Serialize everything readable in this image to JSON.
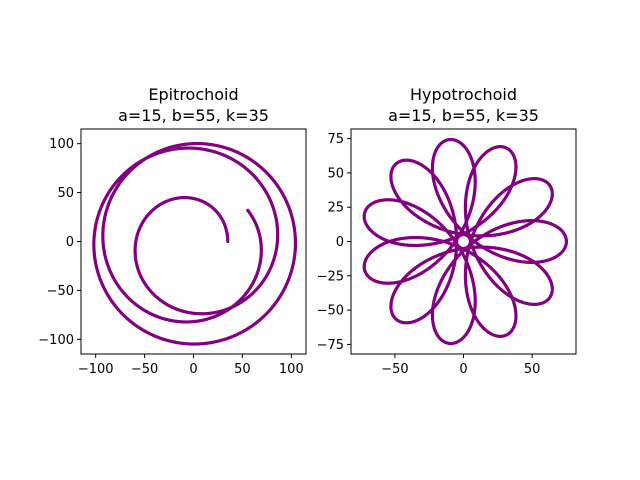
{
  "chart_data": [
    {
      "type": "line",
      "curve": "epitrochoid",
      "title_line1": "Epitrochoid",
      "title_line2": "a=15, b=55, k=35",
      "params": {
        "a": 15,
        "b": 55,
        "k": 35
      },
      "color": "#800080",
      "xlim": [
        -115,
        115
      ],
      "ylim": [
        -115,
        115
      ],
      "xticks": [
        -100,
        -50,
        0,
        50,
        100
      ],
      "yticks": [
        -100,
        -50,
        0,
        50,
        100
      ],
      "xticklabels": [
        "−100",
        "−50",
        "0",
        "50",
        "100"
      ],
      "yticklabels": [
        "−100",
        "−50",
        "0",
        "50",
        "100"
      ],
      "grid": false
    },
    {
      "type": "line",
      "curve": "hypotrochoid",
      "title_line1": "Hypotrochoid",
      "title_line2": "a=15, b=55, k=35",
      "params": {
        "a": 15,
        "b": 55,
        "k": 35
      },
      "color": "#800080",
      "xlim": [
        -82,
        82
      ],
      "ylim": [
        -82,
        82
      ],
      "xticks": [
        -50,
        0,
        50
      ],
      "yticks": [
        -75,
        -50,
        -25,
        0,
        25,
        50,
        75
      ],
      "xticklabels": [
        "−50",
        "0",
        "50"
      ],
      "yticklabels": [
        "−75",
        "−50",
        "−25",
        "0",
        "25",
        "50",
        "75"
      ],
      "grid": false
    }
  ]
}
